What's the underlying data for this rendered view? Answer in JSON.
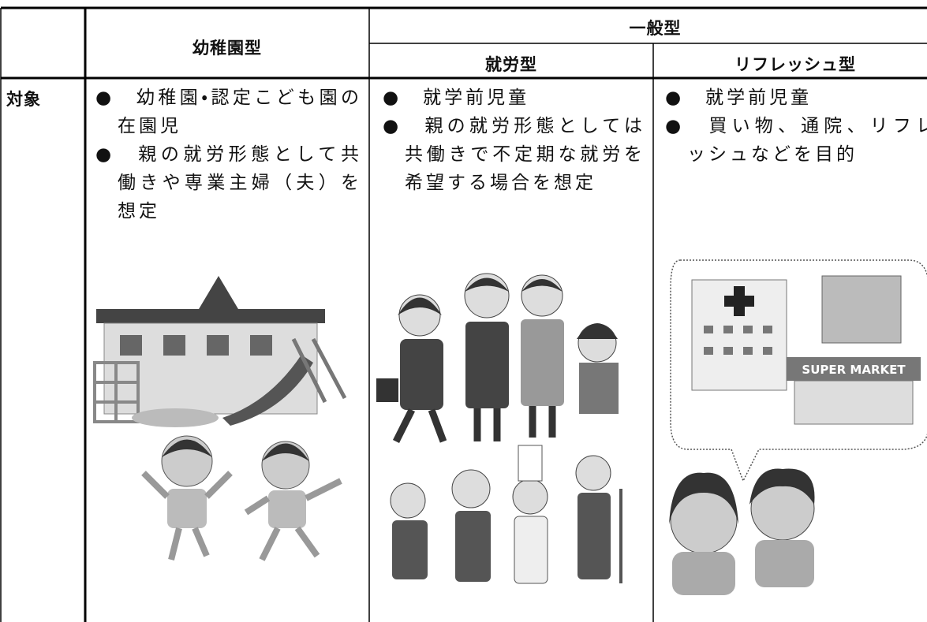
{
  "table": {
    "headers": {
      "kindergarten": "幼稚園型",
      "general": "一般型",
      "work": "就労型",
      "refresh": "リフレッシュ型"
    },
    "row_label": "対象",
    "cells": {
      "kindergarten": [
        "●　幼稚園・認定こども園の在園児",
        "●　親の就労形態として共働きや専業主婦（夫）を想定"
      ],
      "work": [
        "●　就学前児童",
        "●　親の就労形態としては共働きで不定期な就労を希望する場合を想定"
      ],
      "refresh": [
        "●　就学前児童",
        "●　買い物、通院、リフレッシュなどを目的"
      ]
    },
    "sign": "SUPER MARKET"
  }
}
